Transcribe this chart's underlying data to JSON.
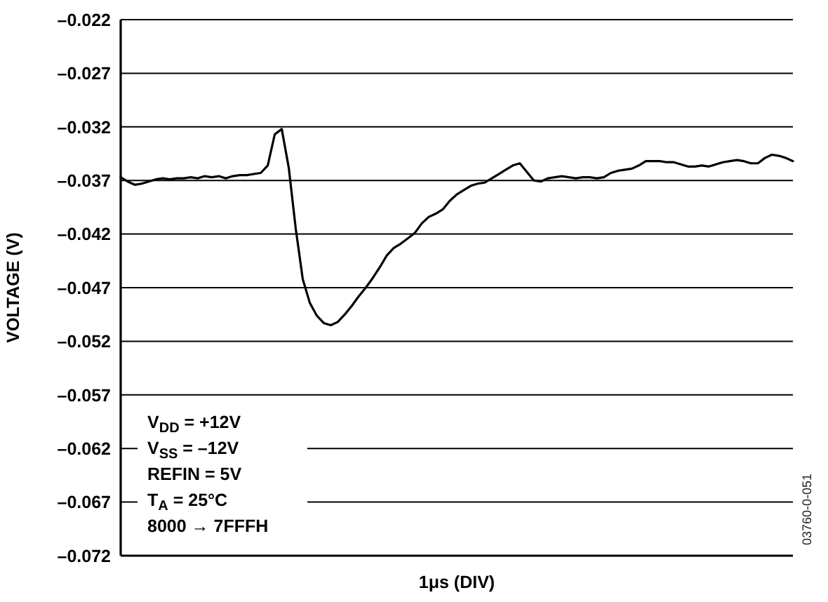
{
  "chart_data": {
    "type": "line",
    "xlabel": "1μs (DIV)",
    "ylabel": "VOLTAGE (V)",
    "annotations": [
      "V$_{DD}$ = +12V",
      "V$_{SS}$ = –12V",
      "REFIN = 5V",
      "T$_{A}$ = 25°C",
      "8000 → 7FFFH",
      "03760-0-051"
    ],
    "categories": [
      null,
      null,
      null,
      null,
      null,
      null,
      null,
      null,
      null,
      null,
      null,
      null,
      null,
      null,
      null,
      null,
      null,
      null,
      null,
      null,
      null,
      null,
      null,
      null,
      null,
      null,
      null,
      null,
      null,
      null,
      null,
      null,
      null,
      null,
      null,
      null,
      null,
      null,
      null,
      null,
      null,
      null,
      null,
      null,
      null,
      null,
      null,
      null,
      null,
      null,
      null,
      null,
      null,
      null,
      null,
      null,
      null,
      null,
      null,
      null,
      null,
      null,
      null,
      null,
      null,
      null,
      null,
      null,
      null,
      null,
      null,
      null,
      null,
      null,
      null,
      null,
      null,
      null,
      null,
      null,
      null,
      null,
      null,
      null,
      null,
      null,
      null,
      null,
      null,
      null,
      null,
      null,
      null,
      null,
      null,
      null,
      null
    ],
    "values": [
      -0.0367,
      -0.0371,
      -0.0374,
      -0.0373,
      -0.0371,
      -0.0369,
      -0.0368,
      -0.0369,
      -0.0368,
      -0.0368,
      -0.0367,
      -0.0368,
      -0.0366,
      -0.0367,
      -0.0366,
      -0.0368,
      -0.0366,
      -0.0365,
      -0.0365,
      -0.0364,
      -0.0363,
      -0.0356,
      -0.0327,
      -0.0322,
      -0.0358,
      -0.0415,
      -0.0462,
      -0.0484,
      -0.0496,
      -0.0503,
      -0.0505,
      -0.0502,
      -0.0495,
      -0.0487,
      -0.0478,
      -0.047,
      -0.0461,
      -0.0451,
      -0.044,
      -0.0433,
      -0.0429,
      -0.0424,
      -0.0419,
      -0.041,
      -0.0404,
      -0.0401,
      -0.0397,
      -0.0389,
      -0.0383,
      -0.0379,
      -0.0375,
      -0.0373,
      -0.0372,
      -0.0368,
      -0.0364,
      -0.036,
      -0.0356,
      -0.0354,
      -0.0362,
      -0.037,
      -0.0371,
      -0.0368,
      -0.0367,
      -0.0366,
      -0.0367,
      -0.0368,
      -0.0367,
      -0.0367,
      -0.0368,
      -0.0367,
      -0.0363,
      -0.0361,
      -0.036,
      -0.0359,
      -0.0356,
      -0.0352,
      -0.0352,
      -0.0352,
      -0.0353,
      -0.0353,
      -0.0355,
      -0.0357,
      -0.0357,
      -0.0356,
      -0.0357,
      -0.0355,
      -0.0353,
      -0.0352,
      -0.0351,
      -0.0352,
      -0.0354,
      -0.0354,
      -0.0349,
      -0.0346,
      -0.0347,
      -0.0349,
      -0.0352
    ],
    "color": "#000000",
    "line_style": "solid",
    "ylim": [
      -0.072,
      -0.022
    ],
    "yticks": [
      {
        "value": -0.072,
        "label": "–0.072"
      },
      {
        "value": -0.067,
        "label": "–0.067"
      },
      {
        "value": -0.062,
        "label": "–0.062"
      },
      {
        "value": -0.057,
        "label": "–0.057"
      },
      {
        "value": -0.052,
        "label": "–0.052"
      },
      {
        "value": -0.047,
        "label": "–0.047"
      },
      {
        "value": -0.042,
        "label": "–0.042"
      },
      {
        "value": -0.037,
        "label": "–0.037"
      },
      {
        "value": -0.032,
        "label": "–0.032"
      },
      {
        "value": -0.027,
        "label": "–0.027"
      },
      {
        "value": -0.022,
        "label": "–0.022"
      }
    ],
    "grid": "y",
    "tick_labels": "y"
  }
}
